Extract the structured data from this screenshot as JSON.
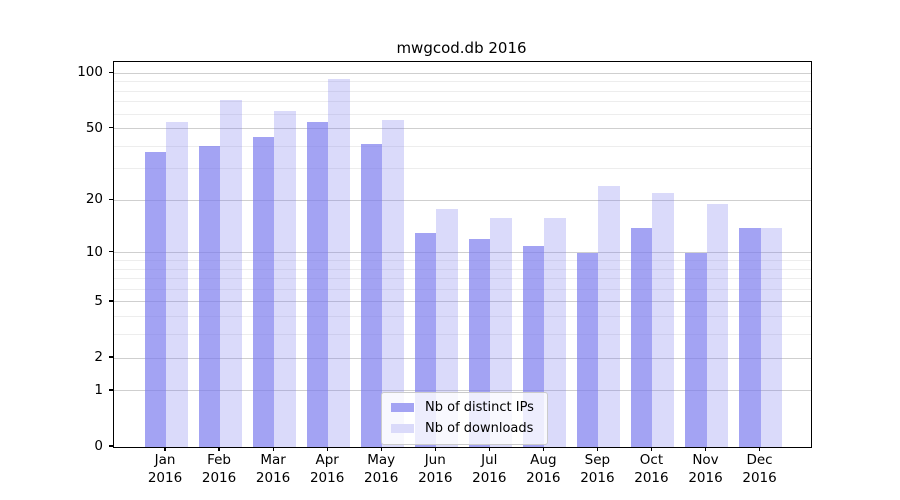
{
  "title": "mwgcod.db 2016",
  "chart_data": {
    "type": "bar",
    "title": "mwgcod.db 2016",
    "categories": [
      "Jan 2016",
      "Feb 2016",
      "Mar 2016",
      "Apr 2016",
      "May 2016",
      "Jun 2016",
      "Jul 2016",
      "Aug 2016",
      "Sep 2016",
      "Oct 2016",
      "Nov 2016",
      "Dec 2016"
    ],
    "x_tick_month_line": [
      "Jan",
      "Feb",
      "Mar",
      "Apr",
      "May",
      "Jun",
      "Jul",
      "Aug",
      "Sep",
      "Oct",
      "Nov",
      "Dec"
    ],
    "x_tick_year_line": "2016",
    "series": [
      {
        "name": "Nb of distinct IPs",
        "color": "#7878ee",
        "alpha": 0.68,
        "values": [
          37,
          40,
          45,
          54,
          41,
          13,
          12,
          11,
          10,
          14,
          10,
          14
        ]
      },
      {
        "name": "Nb of downloads",
        "color": "#7878ee",
        "alpha": 0.27,
        "values": [
          54,
          72,
          62,
          93,
          56,
          18,
          16,
          16,
          24,
          22,
          19,
          14
        ]
      }
    ],
    "y_axis": {
      "scale": "log1p",
      "major_ticks": [
        100,
        50,
        20,
        10,
        5,
        2,
        1,
        0
      ],
      "minor_gridlines": [
        3,
        4,
        6,
        7,
        8,
        9,
        30,
        40,
        60,
        70,
        80,
        90
      ],
      "top_value": 115
    },
    "xlabel": "",
    "ylabel": "",
    "grid": true,
    "legend_position": "lower center"
  },
  "legend": {
    "items": [
      "Nb of distinct IPs",
      "Nb of downloads"
    ]
  },
  "colors": {
    "bar_base": "#7878ee",
    "bar_dark_rendered": "#a3a3f3",
    "bar_light_rendered": "#dadafa",
    "grid_major": "#cfcfcf",
    "grid_minor": "#ededed",
    "legend_border": "#cbcbcb",
    "axis_frame": "#000000"
  }
}
